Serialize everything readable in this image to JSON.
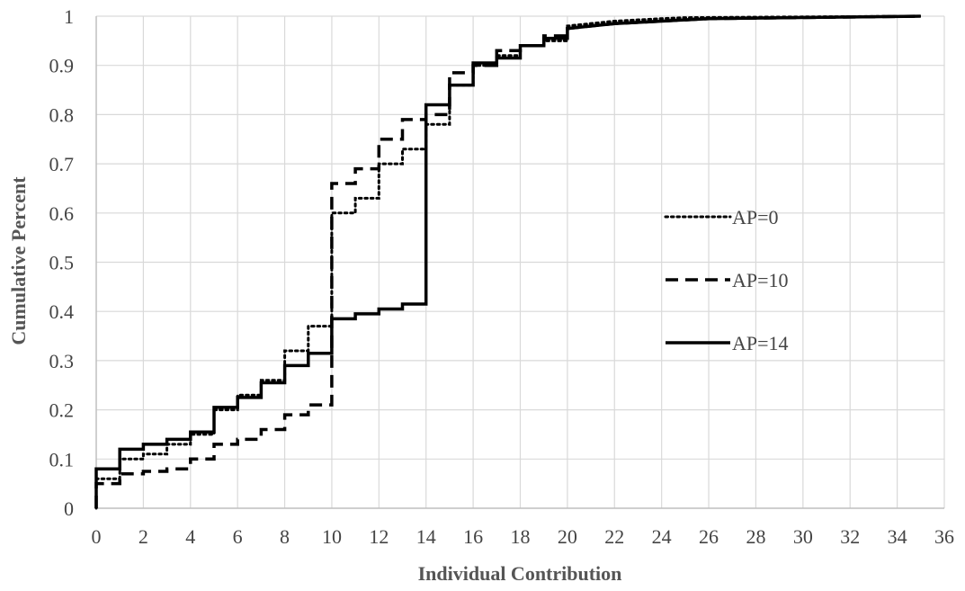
{
  "chart_data": {
    "type": "line",
    "title": "",
    "xlabel": "Individual Contribution",
    "ylabel": "Cumulative Percent",
    "xlim": [
      0,
      36
    ],
    "ylim": [
      0,
      1
    ],
    "x_ticks": [
      "0",
      "2",
      "4",
      "6",
      "8",
      "10",
      "12",
      "14",
      "16",
      "18",
      "20",
      "22",
      "24",
      "26",
      "28",
      "30",
      "32",
      "34",
      "36"
    ],
    "y_ticks": [
      "0",
      "0.1",
      "0.2",
      "0.3",
      "0.4",
      "0.5",
      "0.6",
      "0.7",
      "0.8",
      "0.9",
      "1"
    ],
    "grid": true,
    "legend_position": "right",
    "series": [
      {
        "name": "AP=0",
        "style": "dotted",
        "color": "#000000",
        "x": [
          0,
          0,
          1,
          1,
          2,
          2,
          3,
          3,
          4,
          4,
          5,
          5,
          6,
          6,
          7,
          7,
          8,
          8,
          9,
          9,
          10,
          10,
          11,
          11,
          12,
          12,
          13,
          13,
          14,
          14,
          15,
          15,
          16,
          16,
          17,
          17,
          18,
          18,
          19,
          19,
          20,
          20,
          22,
          24,
          25,
          35
        ],
        "y": [
          0,
          0.06,
          0.06,
          0.1,
          0.1,
          0.11,
          0.11,
          0.13,
          0.13,
          0.15,
          0.15,
          0.2,
          0.2,
          0.23,
          0.23,
          0.26,
          0.26,
          0.32,
          0.32,
          0.37,
          0.37,
          0.6,
          0.6,
          0.63,
          0.63,
          0.7,
          0.7,
          0.73,
          0.73,
          0.78,
          0.78,
          0.86,
          0.86,
          0.9,
          0.9,
          0.92,
          0.92,
          0.94,
          0.94,
          0.95,
          0.95,
          0.98,
          0.99,
          0.995,
          0.997,
          1.0
        ]
      },
      {
        "name": "AP=10",
        "style": "dashed",
        "color": "#000000",
        "x": [
          0,
          0,
          1,
          1,
          2,
          2,
          3,
          3,
          4,
          4,
          5,
          5,
          6,
          6,
          7,
          7,
          8,
          8,
          9,
          9,
          10,
          10,
          11,
          11,
          12,
          12,
          13,
          13,
          14,
          14,
          15,
          15,
          16,
          16,
          17,
          17,
          18,
          18,
          19,
          19,
          20,
          20,
          22,
          24,
          26,
          35
        ],
        "y": [
          0,
          0.05,
          0.05,
          0.07,
          0.07,
          0.075,
          0.075,
          0.08,
          0.08,
          0.1,
          0.1,
          0.13,
          0.13,
          0.14,
          0.14,
          0.16,
          0.16,
          0.19,
          0.19,
          0.21,
          0.21,
          0.66,
          0.66,
          0.69,
          0.69,
          0.75,
          0.75,
          0.79,
          0.79,
          0.8,
          0.8,
          0.885,
          0.885,
          0.9,
          0.9,
          0.93,
          0.93,
          0.94,
          0.94,
          0.96,
          0.96,
          0.975,
          0.985,
          0.99,
          0.995,
          1.0
        ]
      },
      {
        "name": "AP=14",
        "style": "solid",
        "color": "#000000",
        "x": [
          0,
          0,
          1,
          1,
          2,
          2,
          3,
          3,
          4,
          4,
          5,
          5,
          6,
          6,
          7,
          7,
          8,
          8,
          9,
          9,
          10,
          10,
          11,
          11,
          12,
          12,
          13,
          13,
          14,
          14,
          15,
          15,
          16,
          16,
          17,
          17,
          18,
          18,
          19,
          19,
          20,
          20,
          22,
          24,
          26,
          35
        ],
        "y": [
          0,
          0.08,
          0.08,
          0.12,
          0.12,
          0.13,
          0.13,
          0.14,
          0.14,
          0.155,
          0.155,
          0.205,
          0.205,
          0.225,
          0.225,
          0.255,
          0.255,
          0.29,
          0.29,
          0.315,
          0.315,
          0.385,
          0.385,
          0.395,
          0.395,
          0.405,
          0.405,
          0.415,
          0.415,
          0.82,
          0.82,
          0.86,
          0.86,
          0.905,
          0.905,
          0.915,
          0.915,
          0.94,
          0.94,
          0.955,
          0.955,
          0.975,
          0.985,
          0.99,
          0.995,
          1.0
        ]
      }
    ]
  }
}
